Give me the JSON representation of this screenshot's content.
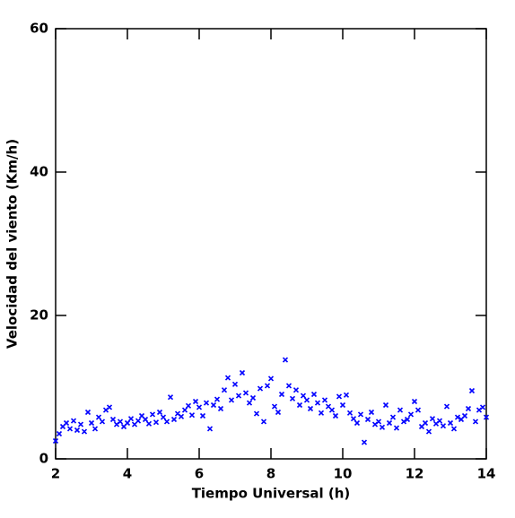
{
  "chart_data": {
    "type": "scatter",
    "xlabel": "Tiempo Universal (h)",
    "ylabel": "Velocidad del viento (Km/h)",
    "color": "#0000ff",
    "xlim": [
      2,
      14
    ],
    "ylim": [
      0,
      60
    ],
    "xticks": [
      2,
      4,
      6,
      8,
      10,
      12,
      14
    ],
    "yticks": [
      0,
      20,
      40,
      60
    ],
    "x": [
      2.0,
      2.1,
      2.2,
      2.3,
      2.4,
      2.5,
      2.6,
      2.7,
      2.8,
      2.9,
      3.0,
      3.1,
      3.2,
      3.3,
      3.4,
      3.5,
      3.6,
      3.7,
      3.8,
      3.9,
      4.0,
      4.1,
      4.2,
      4.3,
      4.4,
      4.5,
      4.6,
      4.7,
      4.8,
      4.9,
      5.0,
      5.1,
      5.2,
      5.3,
      5.4,
      5.5,
      5.6,
      5.7,
      5.8,
      5.9,
      6.0,
      6.1,
      6.2,
      6.3,
      6.4,
      6.5,
      6.6,
      6.7,
      6.8,
      6.9,
      7.0,
      7.1,
      7.2,
      7.3,
      7.4,
      7.5,
      7.6,
      7.7,
      7.8,
      7.9,
      8.0,
      8.1,
      8.2,
      8.3,
      8.4,
      8.5,
      8.6,
      8.7,
      8.8,
      8.9,
      9.0,
      9.1,
      9.2,
      9.3,
      9.4,
      9.5,
      9.6,
      9.7,
      9.8,
      9.9,
      10.0,
      10.1,
      10.2,
      10.3,
      10.4,
      10.5,
      10.6,
      10.7,
      10.8,
      10.9,
      11.0,
      11.1,
      11.2,
      11.3,
      11.4,
      11.5,
      11.6,
      11.7,
      11.8,
      11.9,
      12.0,
      12.1,
      12.2,
      12.3,
      12.4,
      12.5,
      12.6,
      12.7,
      12.8,
      12.9,
      13.0,
      13.1,
      13.2,
      13.3,
      13.4,
      13.5,
      13.6,
      13.7,
      13.8,
      13.9,
      14.0
    ],
    "values": [
      2.5,
      3.5,
      4.5,
      5.0,
      4.2,
      5.3,
      4.0,
      4.8,
      3.8,
      6.5,
      5.0,
      4.2,
      5.8,
      5.2,
      6.8,
      7.2,
      5.5,
      4.8,
      5.2,
      4.5,
      5.0,
      5.6,
      4.8,
      5.3,
      6.0,
      5.5,
      4.9,
      6.2,
      5.1,
      6.5,
      5.8,
      5.2,
      8.6,
      5.5,
      6.3,
      5.9,
      6.8,
      7.4,
      6.1,
      8.0,
      7.2,
      6.0,
      7.8,
      4.2,
      7.5,
      8.3,
      7.0,
      9.6,
      11.3,
      8.2,
      10.4,
      8.8,
      12.0,
      9.2,
      7.8,
      8.5,
      6.3,
      9.8,
      5.2,
      10.2,
      11.2,
      7.3,
      6.5,
      9.0,
      13.8,
      10.2,
      8.4,
      9.6,
      7.5,
      8.8,
      8.2,
      7.0,
      9.0,
      7.8,
      6.4,
      8.2,
      7.3,
      6.8,
      6.0,
      8.7,
      7.5,
      8.9,
      6.4,
      5.6,
      5.0,
      6.2,
      2.3,
      5.5,
      6.5,
      4.8,
      5.2,
      4.4,
      7.5,
      5.0,
      5.8,
      4.3,
      6.8,
      5.2,
      5.5,
      6.2,
      8.0,
      6.8,
      4.5,
      5.0,
      3.8,
      5.6,
      4.9,
      5.3,
      4.6,
      7.3,
      5.0,
      4.2,
      5.8,
      5.5,
      6.0,
      7.0,
      9.5,
      5.2,
      6.8,
      7.2,
      5.8
    ]
  }
}
